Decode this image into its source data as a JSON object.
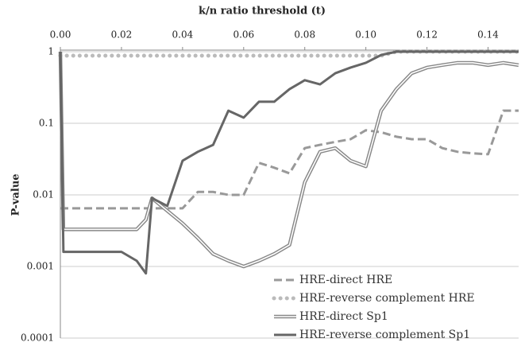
{
  "chart_data": {
    "type": "line",
    "title": "k/n ratio threshold (t)",
    "y_label": "P-value",
    "x": [
      0,
      0.001,
      0.01,
      0.02,
      0.025,
      0.028,
      0.03,
      0.035,
      0.04,
      0.045,
      0.05,
      0.055,
      0.06,
      0.065,
      0.07,
      0.075,
      0.08,
      0.085,
      0.09,
      0.095,
      0.1,
      0.105,
      0.11,
      0.115,
      0.12,
      0.125,
      0.13,
      0.135,
      0.14,
      0.145,
      0.15
    ],
    "series": [
      {
        "name": "HRE-direct HRE",
        "color": "#999999",
        "style": "dashed",
        "values": [
          0.0065,
          0.0065,
          0.0065,
          0.0065,
          0.0065,
          0.0065,
          0.0065,
          0.0065,
          0.0065,
          0.011,
          0.011,
          0.01,
          0.01,
          0.028,
          0.024,
          0.02,
          0.045,
          0.05,
          0.055,
          0.06,
          0.08,
          0.075,
          0.065,
          0.06,
          0.06,
          0.045,
          0.04,
          0.038,
          0.037,
          0.15,
          0.15
        ]
      },
      {
        "name": "HRE-reverse complement HRE",
        "color": "#bbbbbb",
        "style": "dotted",
        "values": [
          0.88,
          0.88,
          0.88,
          0.88,
          0.88,
          0.88,
          0.88,
          0.88,
          0.88,
          0.88,
          0.88,
          0.88,
          0.88,
          0.88,
          0.88,
          0.88,
          0.88,
          0.88,
          0.88,
          0.88,
          0.88,
          0.88,
          1,
          1,
          1,
          1,
          1,
          1,
          1,
          1,
          1
        ]
      },
      {
        "name": "HRE-direct Sp1",
        "color": "#888888",
        "style": "double",
        "values": [
          1,
          0.0033,
          0.0033,
          0.0033,
          0.0033,
          0.0045,
          0.009,
          0.006,
          0.004,
          0.0025,
          0.0015,
          0.0012,
          0.001,
          0.0012,
          0.0015,
          0.002,
          0.015,
          0.04,
          0.045,
          0.03,
          0.025,
          0.15,
          0.3,
          0.5,
          0.6,
          0.65,
          0.7,
          0.7,
          0.65,
          0.7,
          0.65
        ]
      },
      {
        "name": "HRE-reverse complement Sp1",
        "color": "#666666",
        "style": "solid",
        "values": [
          1,
          0.0016,
          0.0016,
          0.0016,
          0.0012,
          0.0008,
          0.009,
          0.007,
          0.03,
          0.04,
          0.05,
          0.15,
          0.12,
          0.2,
          0.2,
          0.3,
          0.4,
          0.35,
          0.5,
          0.6,
          0.7,
          0.9,
          1,
          1,
          1,
          1,
          1,
          1,
          1,
          1,
          1
        ]
      }
    ],
    "xlim": [
      0,
      0.15
    ],
    "xticks": [
      {
        "value": 0,
        "label": "0.00"
      },
      {
        "value": 0.02,
        "label": "0.02"
      },
      {
        "value": 0.04,
        "label": "0.04"
      },
      {
        "value": 0.06,
        "label": "0.06"
      },
      {
        "value": 0.08,
        "label": "0.08"
      },
      {
        "value": 0.1,
        "label": "0.10"
      },
      {
        "value": 0.12,
        "label": "0.12"
      },
      {
        "value": 0.14,
        "label": "0.14"
      }
    ],
    "ylim": [
      0.0001,
      1
    ],
    "yticks": [
      1,
      0.1,
      0.01,
      0.001,
      0.0001
    ],
    "log_y": true,
    "grid": true,
    "legend": "lower right"
  }
}
